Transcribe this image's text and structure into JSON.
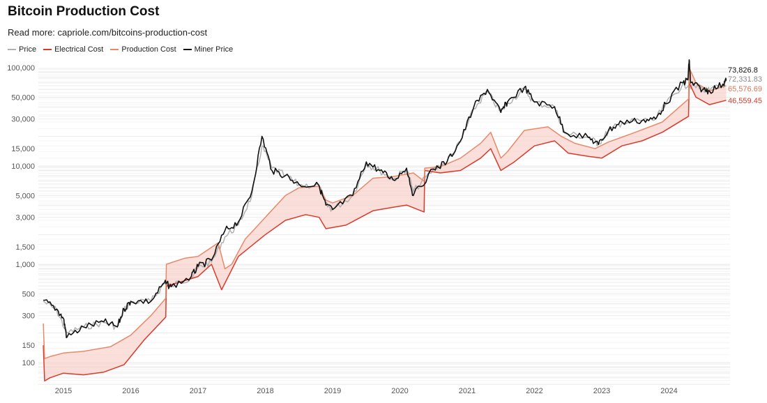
{
  "chart_data": {
    "type": "line",
    "title": "Bitcoin Production Cost",
    "subtitle": "Read more: capriole.com/bitcoins-production-cost",
    "y_scale": "log",
    "ylim": [
      60,
      130000
    ],
    "xlim": [
      2014.6,
      2025.0
    ],
    "y_ticks": [
      100000,
      50000,
      30000,
      15000,
      10000,
      5000,
      3000,
      1500,
      1000,
      500,
      300,
      150,
      100
    ],
    "y_tick_labels": [
      "100,000",
      "50,000",
      "30,000",
      "15,000",
      "10,000",
      "5,000",
      "3,000",
      "1,500",
      "1,000",
      "500",
      "300",
      "150",
      "100"
    ],
    "x_ticks": [
      2015,
      2016,
      2017,
      2018,
      2019,
      2020,
      2021,
      2022,
      2023,
      2024
    ],
    "x_tick_labels": [
      "2015",
      "2016",
      "2017",
      "2018",
      "2019",
      "2020",
      "2021",
      "2022",
      "2023",
      "2024"
    ],
    "grid": true,
    "legend_position": "top-left",
    "series": [
      {
        "name": "Price",
        "color": "#b0b0b0",
        "x": [
          2014.7,
          2014.9,
          2015.05,
          2015.3,
          2015.6,
          2015.8,
          2015.9,
          2016.0,
          2016.3,
          2016.5,
          2016.6,
          2016.9,
          2017.0,
          2017.2,
          2017.4,
          2017.6,
          2017.8,
          2017.95,
          2018.1,
          2018.3,
          2018.5,
          2018.8,
          2018.9,
          2019.0,
          2019.3,
          2019.5,
          2019.7,
          2019.9,
          2020.1,
          2020.2,
          2020.5,
          2020.7,
          2020.9,
          2021.1,
          2021.3,
          2021.5,
          2021.6,
          2021.85,
          2022.0,
          2022.3,
          2022.45,
          2022.8,
          2022.95,
          2023.1,
          2023.3,
          2023.6,
          2023.8,
          2023.95,
          2024.2,
          2024.3,
          2024.5,
          2024.6,
          2024.8,
          2024.85
        ],
        "values": [
          420,
          340,
          200,
          230,
          255,
          230,
          340,
          410,
          420,
          640,
          600,
          740,
          920,
          1050,
          1900,
          2500,
          5000,
          16000,
          9500,
          8000,
          6400,
          6300,
          4000,
          3600,
          5000,
          10500,
          9000,
          7200,
          9400,
          5500,
          9200,
          11000,
          17500,
          38000,
          57000,
          35000,
          44000,
          60000,
          44000,
          40000,
          21500,
          19500,
          16800,
          22500,
          27500,
          29000,
          30000,
          42000,
          67000,
          66000,
          61000,
          58000,
          66000,
          72331.83
        ]
      },
      {
        "name": "Electrical Cost",
        "color": "#d93a2b",
        "x": [
          2014.7,
          2014.72,
          2014.8,
          2015.0,
          2015.3,
          2015.6,
          2015.9,
          2016.2,
          2016.52,
          2016.53,
          2016.8,
          2017.0,
          2017.2,
          2017.35,
          2017.6,
          2018.0,
          2018.3,
          2018.6,
          2018.8,
          2018.9,
          2019.2,
          2019.6,
          2019.9,
          2020.1,
          2020.36,
          2020.37,
          2020.6,
          2020.9,
          2021.2,
          2021.35,
          2021.5,
          2021.7,
          2022.0,
          2022.3,
          2022.5,
          2022.8,
          2023.0,
          2023.3,
          2023.6,
          2023.9,
          2024.29,
          2024.3,
          2024.4,
          2024.6,
          2024.85
        ],
        "values": [
          150,
          65,
          70,
          78,
          75,
          80,
          95,
          170,
          290,
          600,
          680,
          750,
          1000,
          550,
          1200,
          2000,
          2800,
          3200,
          3000,
          2300,
          2500,
          3500,
          3800,
          4000,
          3400,
          9000,
          8500,
          9000,
          12000,
          15000,
          9000,
          11000,
          16000,
          18000,
          13500,
          12500,
          12000,
          16000,
          18000,
          22000,
          32000,
          70000,
          50000,
          42000,
          46559.45
        ]
      },
      {
        "name": "Production Cost",
        "color": "#e8896a",
        "x": [
          2014.7,
          2014.72,
          2014.8,
          2015.0,
          2015.3,
          2015.7,
          2016.0,
          2016.3,
          2016.52,
          2016.53,
          2016.8,
          2017.0,
          2017.3,
          2017.4,
          2017.5,
          2017.7,
          2018.0,
          2018.3,
          2018.5,
          2018.8,
          2018.9,
          2019.0,
          2019.3,
          2019.6,
          2019.9,
          2020.2,
          2020.36,
          2020.37,
          2020.6,
          2020.9,
          2021.2,
          2021.35,
          2021.5,
          2021.6,
          2021.85,
          2022.2,
          2022.4,
          2022.6,
          2022.9,
          2023.1,
          2023.5,
          2023.9,
          2024.29,
          2024.3,
          2024.4,
          2024.6,
          2024.85
        ],
        "values": [
          250,
          110,
          115,
          125,
          130,
          145,
          190,
          300,
          450,
          1000,
          1150,
          1200,
          1650,
          900,
          1000,
          1800,
          3000,
          5000,
          6000,
          6200,
          4500,
          4200,
          5000,
          7500,
          7800,
          8500,
          7000,
          9500,
          9800,
          12000,
          17000,
          22000,
          12000,
          14000,
          23000,
          25000,
          20000,
          17000,
          15000,
          17500,
          22000,
          28000,
          48000,
          100000,
          70000,
          58000,
          65576.69
        ]
      },
      {
        "name": "Miner Price",
        "color": "#111111",
        "x": [
          2014.7,
          2014.9,
          2015.0,
          2015.05,
          2015.3,
          2015.6,
          2015.8,
          2015.9,
          2016.0,
          2016.3,
          2016.5,
          2016.6,
          2016.9,
          2017.0,
          2017.2,
          2017.4,
          2017.6,
          2017.8,
          2017.95,
          2018.1,
          2018.3,
          2018.5,
          2018.8,
          2018.9,
          2019.0,
          2019.3,
          2019.5,
          2019.7,
          2019.9,
          2020.1,
          2020.2,
          2020.5,
          2020.7,
          2020.9,
          2021.1,
          2021.3,
          2021.5,
          2021.6,
          2021.85,
          2022.0,
          2022.3,
          2022.45,
          2022.8,
          2022.95,
          2023.1,
          2023.3,
          2023.6,
          2023.8,
          2023.95,
          2024.2,
          2024.28,
          2024.3,
          2024.32,
          2024.5,
          2024.6,
          2024.8,
          2024.85
        ],
        "values": [
          430,
          350,
          280,
          180,
          230,
          260,
          230,
          350,
          420,
          420,
          650,
          590,
          750,
          950,
          1100,
          2200,
          2700,
          5500,
          20000,
          9000,
          8000,
          6500,
          6300,
          4000,
          3600,
          5000,
          11000,
          9000,
          7200,
          9500,
          5000,
          9300,
          11000,
          18000,
          40000,
          60000,
          35000,
          45000,
          63000,
          45000,
          40000,
          22000,
          19500,
          16500,
          23000,
          28000,
          29000,
          30000,
          43000,
          70000,
          75000,
          120000,
          70000,
          60000,
          58000,
          68000,
          73826.8
        ]
      }
    ],
    "end_labels": [
      {
        "series": "Miner Price",
        "text": "73,826.8",
        "color": "#111111"
      },
      {
        "series": "Price",
        "text": "72,331.83",
        "color": "#8a8a8a"
      },
      {
        "series": "Production Cost",
        "text": "65,576.69",
        "color": "#d9765a"
      },
      {
        "series": "Electrical Cost",
        "text": "46,559.45",
        "color": "#d93a2b"
      }
    ],
    "band_fill": "#f6c9c3"
  }
}
